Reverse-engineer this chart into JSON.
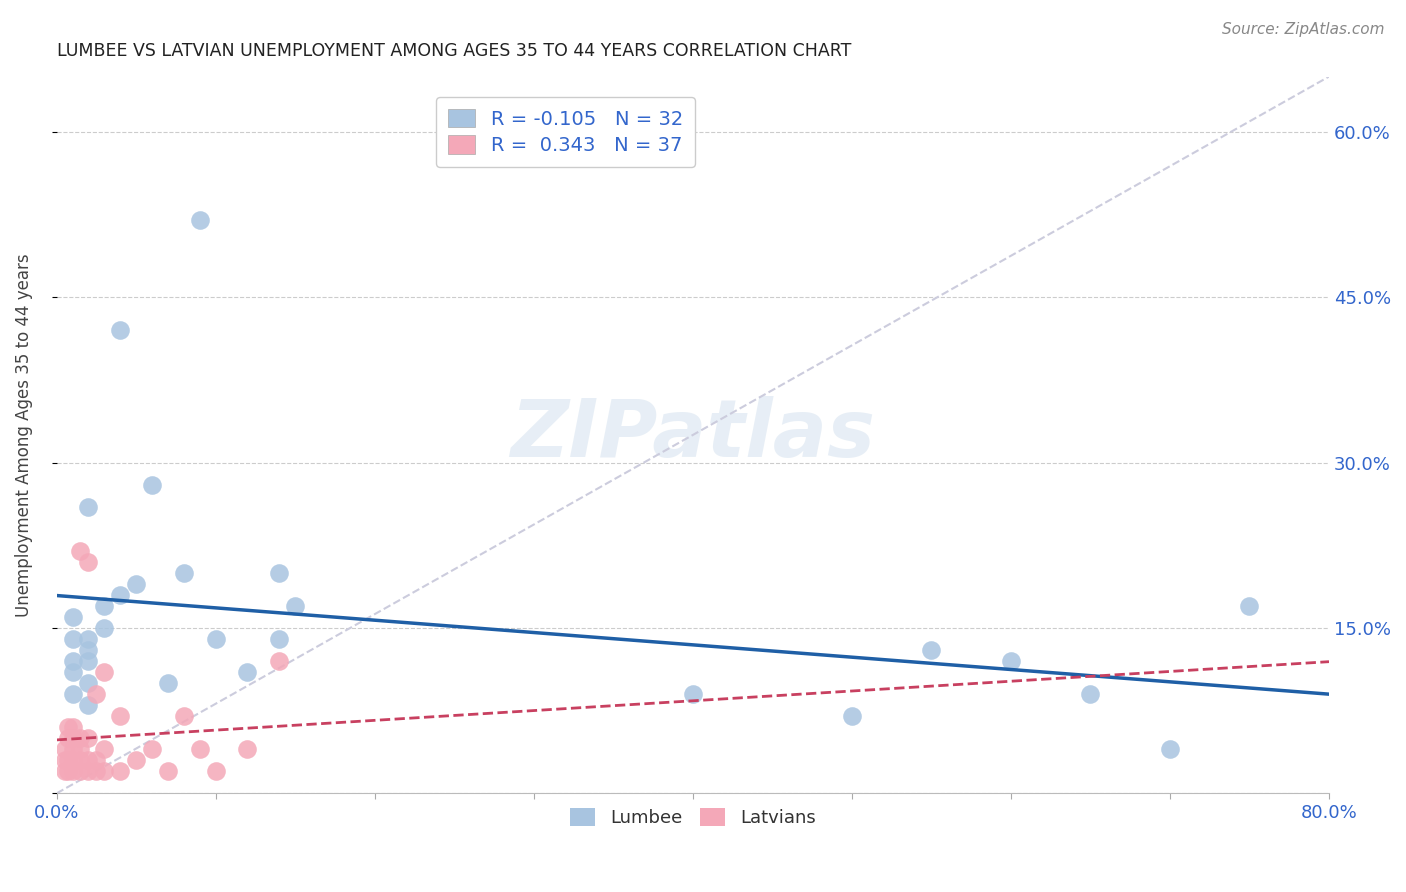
{
  "title": "LUMBEE VS LATVIAN UNEMPLOYMENT AMONG AGES 35 TO 44 YEARS CORRELATION CHART",
  "source": "Source: ZipAtlas.com",
  "ylabel": "Unemployment Among Ages 35 to 44 years",
  "xlim": [
    0.0,
    0.8
  ],
  "ylim": [
    0.0,
    0.65
  ],
  "lumbee_R": -0.105,
  "lumbee_N": 32,
  "latvian_R": 0.343,
  "latvian_N": 37,
  "lumbee_color": "#a8c4e0",
  "latvian_color": "#f4a8b8",
  "lumbee_line_color": "#1f5fa6",
  "latvian_line_color": "#c84060",
  "diagonal_color": "#ccccdd",
  "watermark": "ZIPatlas",
  "lumbee_x": [
    0.02,
    0.04,
    0.09,
    0.06,
    0.01,
    0.01,
    0.02,
    0.02,
    0.03,
    0.04,
    0.05,
    0.01,
    0.01,
    0.02,
    0.02,
    0.03,
    0.08,
    0.14,
    0.14,
    0.4,
    0.5,
    0.6,
    0.7,
    0.55,
    0.65,
    0.75,
    0.01,
    0.02,
    0.1,
    0.15,
    0.12,
    0.07
  ],
  "lumbee_y": [
    0.26,
    0.42,
    0.52,
    0.28,
    0.16,
    0.14,
    0.14,
    0.13,
    0.15,
    0.18,
    0.19,
    0.11,
    0.09,
    0.1,
    0.08,
    0.17,
    0.2,
    0.14,
    0.2,
    0.09,
    0.07,
    0.12,
    0.04,
    0.13,
    0.09,
    0.17,
    0.12,
    0.12,
    0.14,
    0.17,
    0.11,
    0.1
  ],
  "latvian_x": [
    0.005,
    0.005,
    0.005,
    0.007,
    0.007,
    0.007,
    0.007,
    0.01,
    0.01,
    0.01,
    0.01,
    0.01,
    0.015,
    0.015,
    0.015,
    0.015,
    0.015,
    0.02,
    0.02,
    0.02,
    0.02,
    0.025,
    0.025,
    0.025,
    0.03,
    0.03,
    0.03,
    0.04,
    0.04,
    0.05,
    0.06,
    0.07,
    0.08,
    0.09,
    0.1,
    0.12,
    0.14
  ],
  "latvian_y": [
    0.02,
    0.03,
    0.04,
    0.02,
    0.03,
    0.05,
    0.06,
    0.02,
    0.03,
    0.04,
    0.05,
    0.06,
    0.02,
    0.03,
    0.04,
    0.05,
    0.22,
    0.02,
    0.03,
    0.05,
    0.21,
    0.02,
    0.03,
    0.09,
    0.02,
    0.04,
    0.11,
    0.02,
    0.07,
    0.03,
    0.04,
    0.02,
    0.07,
    0.04,
    0.02,
    0.04,
    0.12
  ]
}
